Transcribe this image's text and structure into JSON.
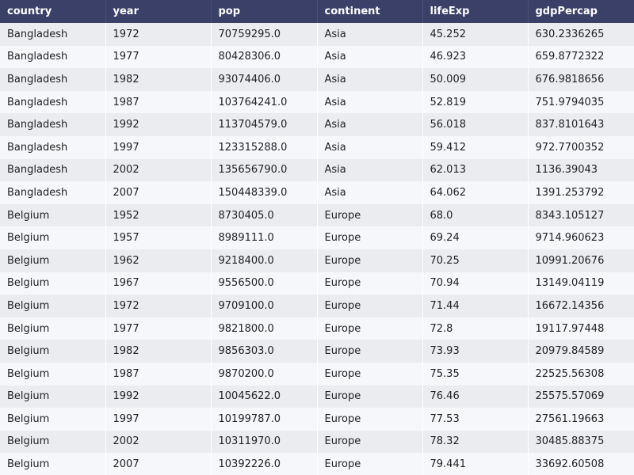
{
  "colors": {
    "header_bg": "#3b4069",
    "header_text": "#ffffff",
    "row_odd": "#ebecf0",
    "row_even": "#f6f7fb"
  },
  "chart_data": {
    "type": "table",
    "columns": [
      "country",
      "year",
      "pop",
      "continent",
      "lifeExp",
      "gdpPercap"
    ],
    "rows": [
      [
        "Bangladesh",
        "1972",
        "70759295.0",
        "Asia",
        "45.252",
        "630.2336265"
      ],
      [
        "Bangladesh",
        "1977",
        "80428306.0",
        "Asia",
        "46.923",
        "659.8772322"
      ],
      [
        "Bangladesh",
        "1982",
        "93074406.0",
        "Asia",
        "50.009",
        "676.9818656"
      ],
      [
        "Bangladesh",
        "1987",
        "103764241.0",
        "Asia",
        "52.819",
        "751.9794035"
      ],
      [
        "Bangladesh",
        "1992",
        "113704579.0",
        "Asia",
        "56.018",
        "837.8101643"
      ],
      [
        "Bangladesh",
        "1997",
        "123315288.0",
        "Asia",
        "59.412",
        "972.7700352"
      ],
      [
        "Bangladesh",
        "2002",
        "135656790.0",
        "Asia",
        "62.013",
        "1136.39043"
      ],
      [
        "Bangladesh",
        "2007",
        "150448339.0",
        "Asia",
        "64.062",
        "1391.253792"
      ],
      [
        "Belgium",
        "1952",
        "8730405.0",
        "Europe",
        "68.0",
        "8343.105127"
      ],
      [
        "Belgium",
        "1957",
        "8989111.0",
        "Europe",
        "69.24",
        "9714.960623"
      ],
      [
        "Belgium",
        "1962",
        "9218400.0",
        "Europe",
        "70.25",
        "10991.20676"
      ],
      [
        "Belgium",
        "1967",
        "9556500.0",
        "Europe",
        "70.94",
        "13149.04119"
      ],
      [
        "Belgium",
        "1972",
        "9709100.0",
        "Europe",
        "71.44",
        "16672.14356"
      ],
      [
        "Belgium",
        "1977",
        "9821800.0",
        "Europe",
        "72.8",
        "19117.97448"
      ],
      [
        "Belgium",
        "1982",
        "9856303.0",
        "Europe",
        "73.93",
        "20979.84589"
      ],
      [
        "Belgium",
        "1987",
        "9870200.0",
        "Europe",
        "75.35",
        "22525.56308"
      ],
      [
        "Belgium",
        "1992",
        "10045622.0",
        "Europe",
        "76.46",
        "25575.57069"
      ],
      [
        "Belgium",
        "1997",
        "10199787.0",
        "Europe",
        "77.53",
        "27561.19663"
      ],
      [
        "Belgium",
        "2002",
        "10311970.0",
        "Europe",
        "78.32",
        "30485.88375"
      ],
      [
        "Belgium",
        "2007",
        "10392226.0",
        "Europe",
        "79.441",
        "33692.60508"
      ]
    ]
  }
}
